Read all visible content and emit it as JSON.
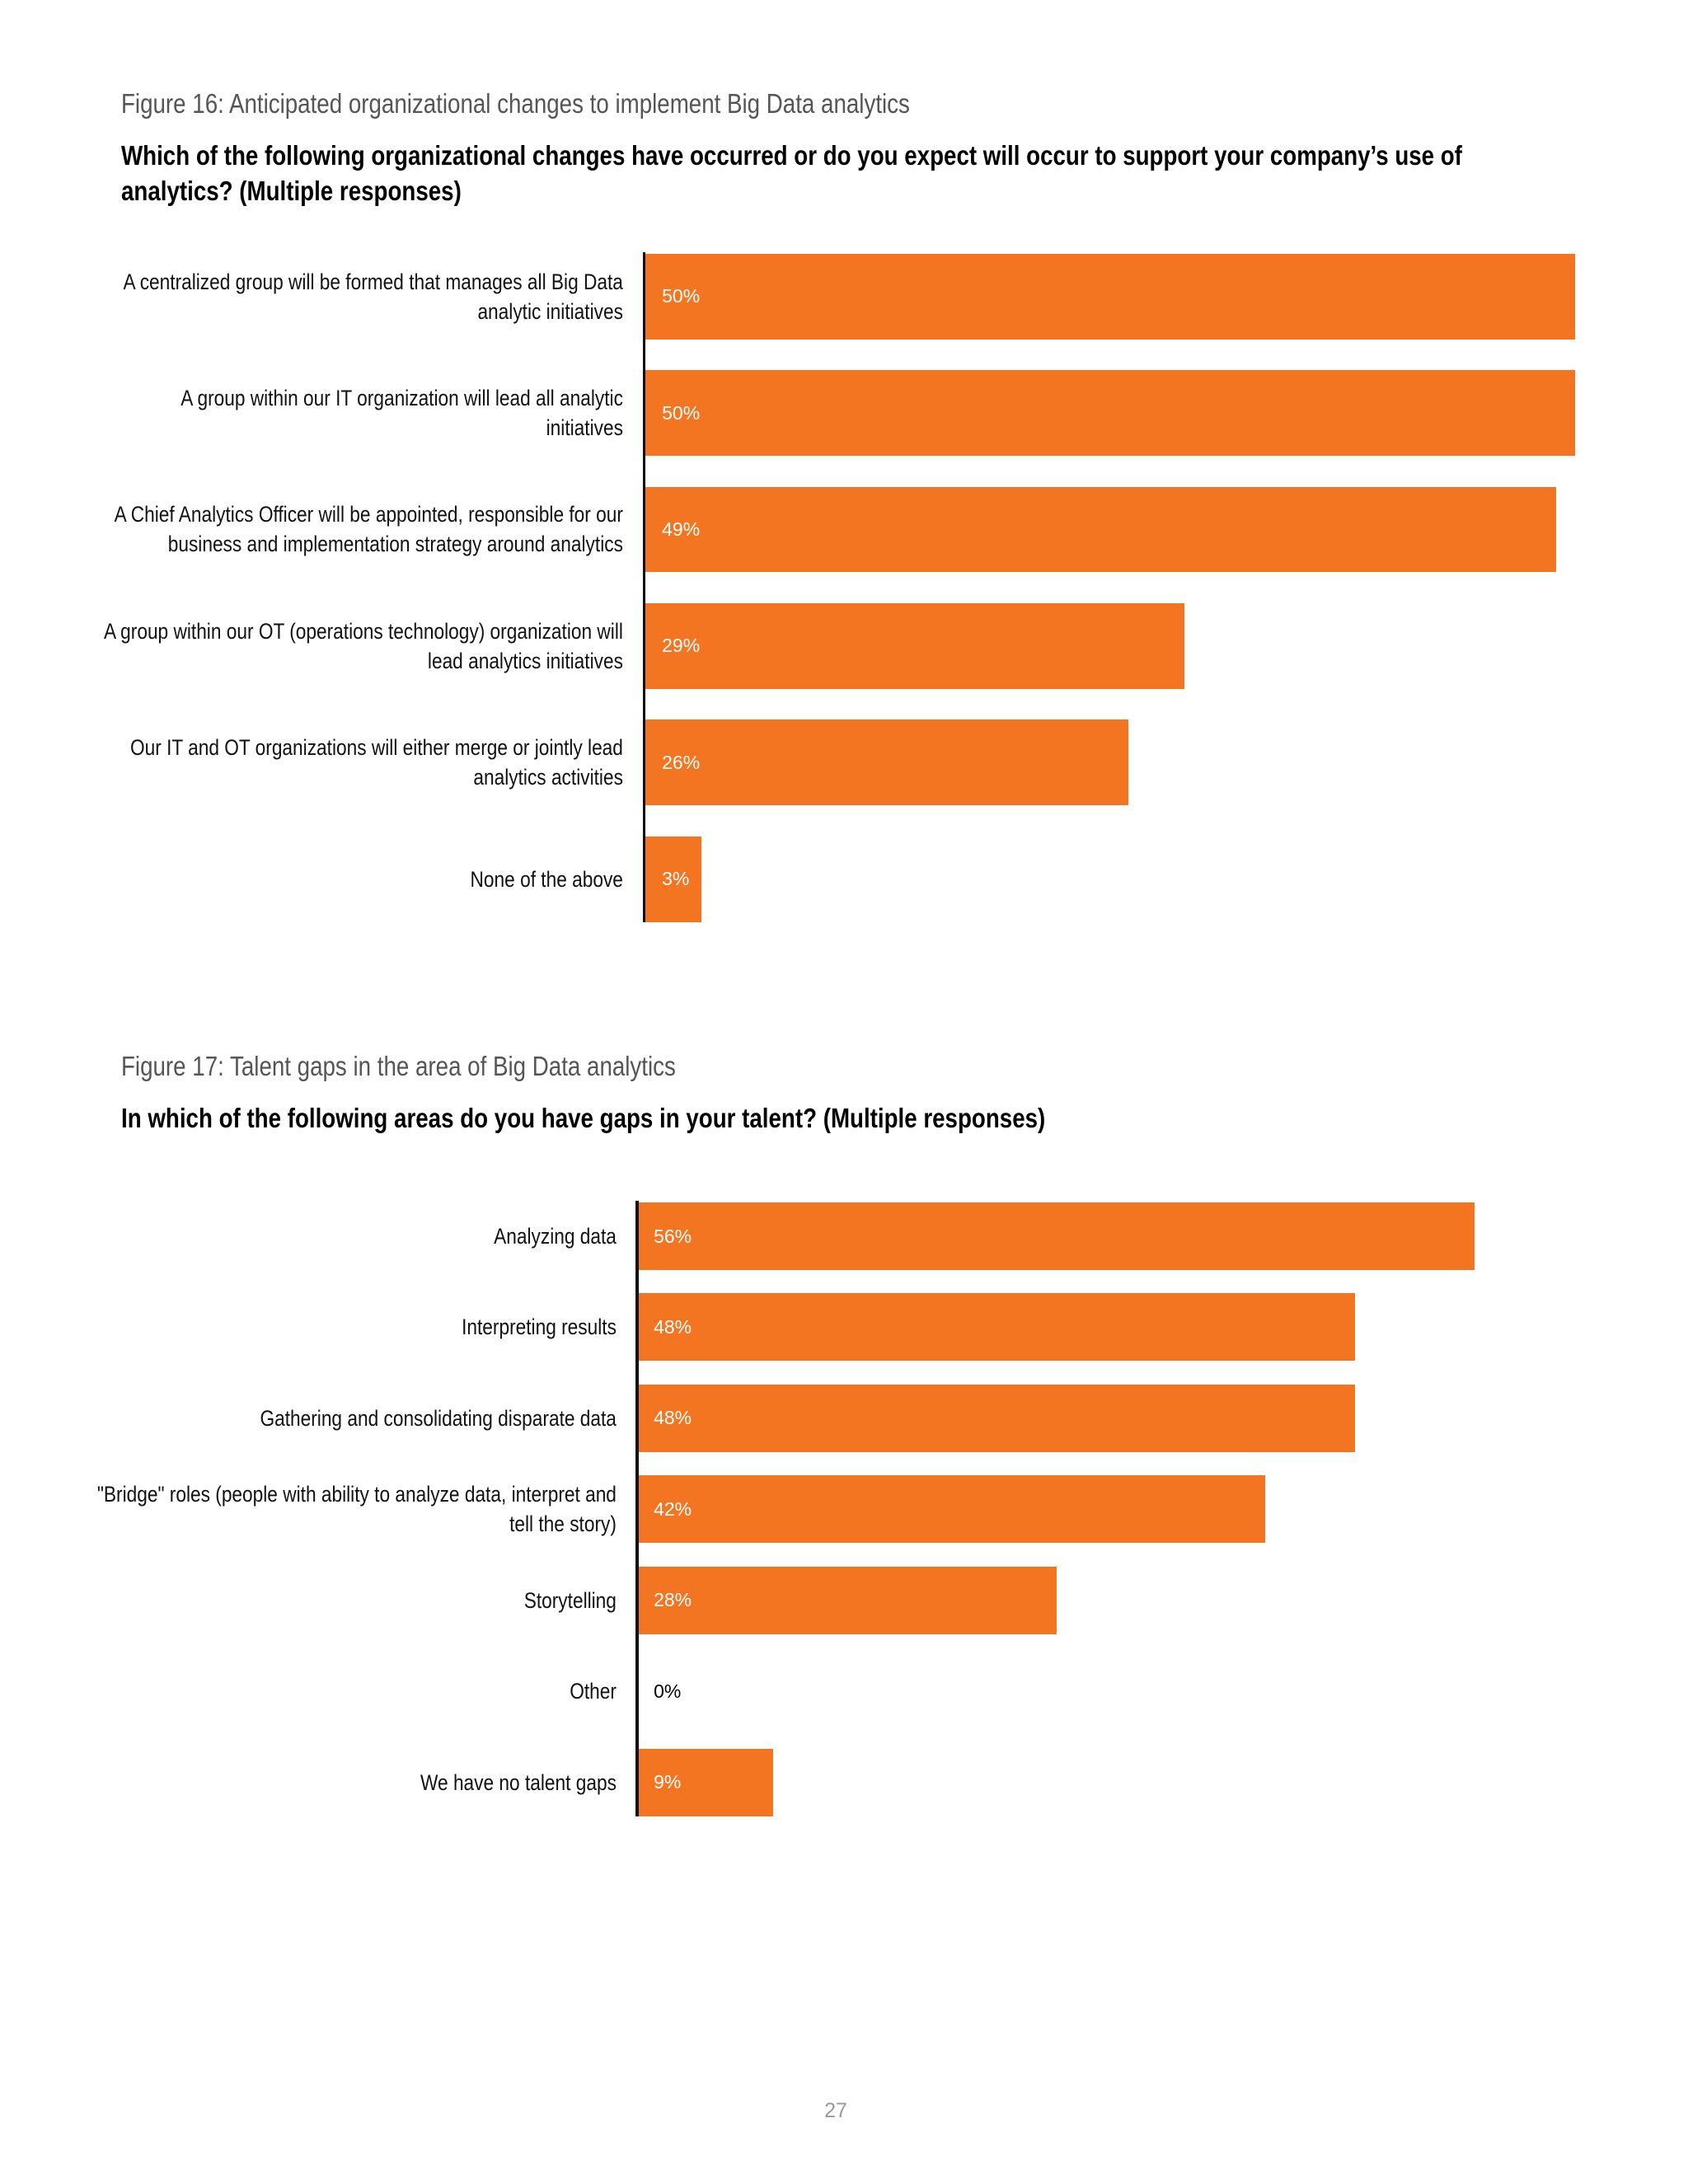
{
  "chart_data": [
    {
      "type": "bar",
      "title": "Figure 16: Anticipated organizational changes to implement Big Data analytics",
      "subtitle": "Which of the following organizational changes have occurred or do you expect will occur to support your company’s use of analytics? (Multiple responses)",
      "categories": [
        "A centralized group will be formed that manages all Big Data analytic initiatives",
        "A group within our IT organization will lead all analytic initiatives",
        "A Chief Analytics Officer will be appointed, responsible for our business and implementation strategy around analytics",
        "A group within our OT (operations technology) organization will lead analytics initiatives",
        "Our IT and OT organizations will either merge or jointly lead analytics activities",
        "None of the above"
      ],
      "values": [
        50,
        50,
        49,
        29,
        26,
        3
      ],
      "value_labels": [
        "50%",
        "50%",
        "49%",
        "29%",
        "26%",
        "3%"
      ],
      "color": "#f47521",
      "xlim": [
        0,
        50
      ]
    },
    {
      "type": "bar",
      "title": "Figure 17: Talent gaps in the area of Big Data analytics",
      "subtitle": "In which of the following areas do you have gaps in your talent? (Multiple responses)",
      "categories": [
        "Analyzing data",
        "Interpreting results",
        "Gathering and consolidating disparate data",
        "\"Bridge\" roles (people with ability to analyze data, interpret and tell the story)",
        "Storytelling",
        "Other",
        "We have no talent gaps"
      ],
      "values": [
        56,
        48,
        48,
        42,
        28,
        0,
        9
      ],
      "value_labels": [
        "56%",
        "48%",
        "48%",
        "42%",
        "28%",
        "0%",
        "9%"
      ],
      "color": "#f47521",
      "xlim": [
        0,
        56
      ]
    }
  ],
  "page_number": "27"
}
